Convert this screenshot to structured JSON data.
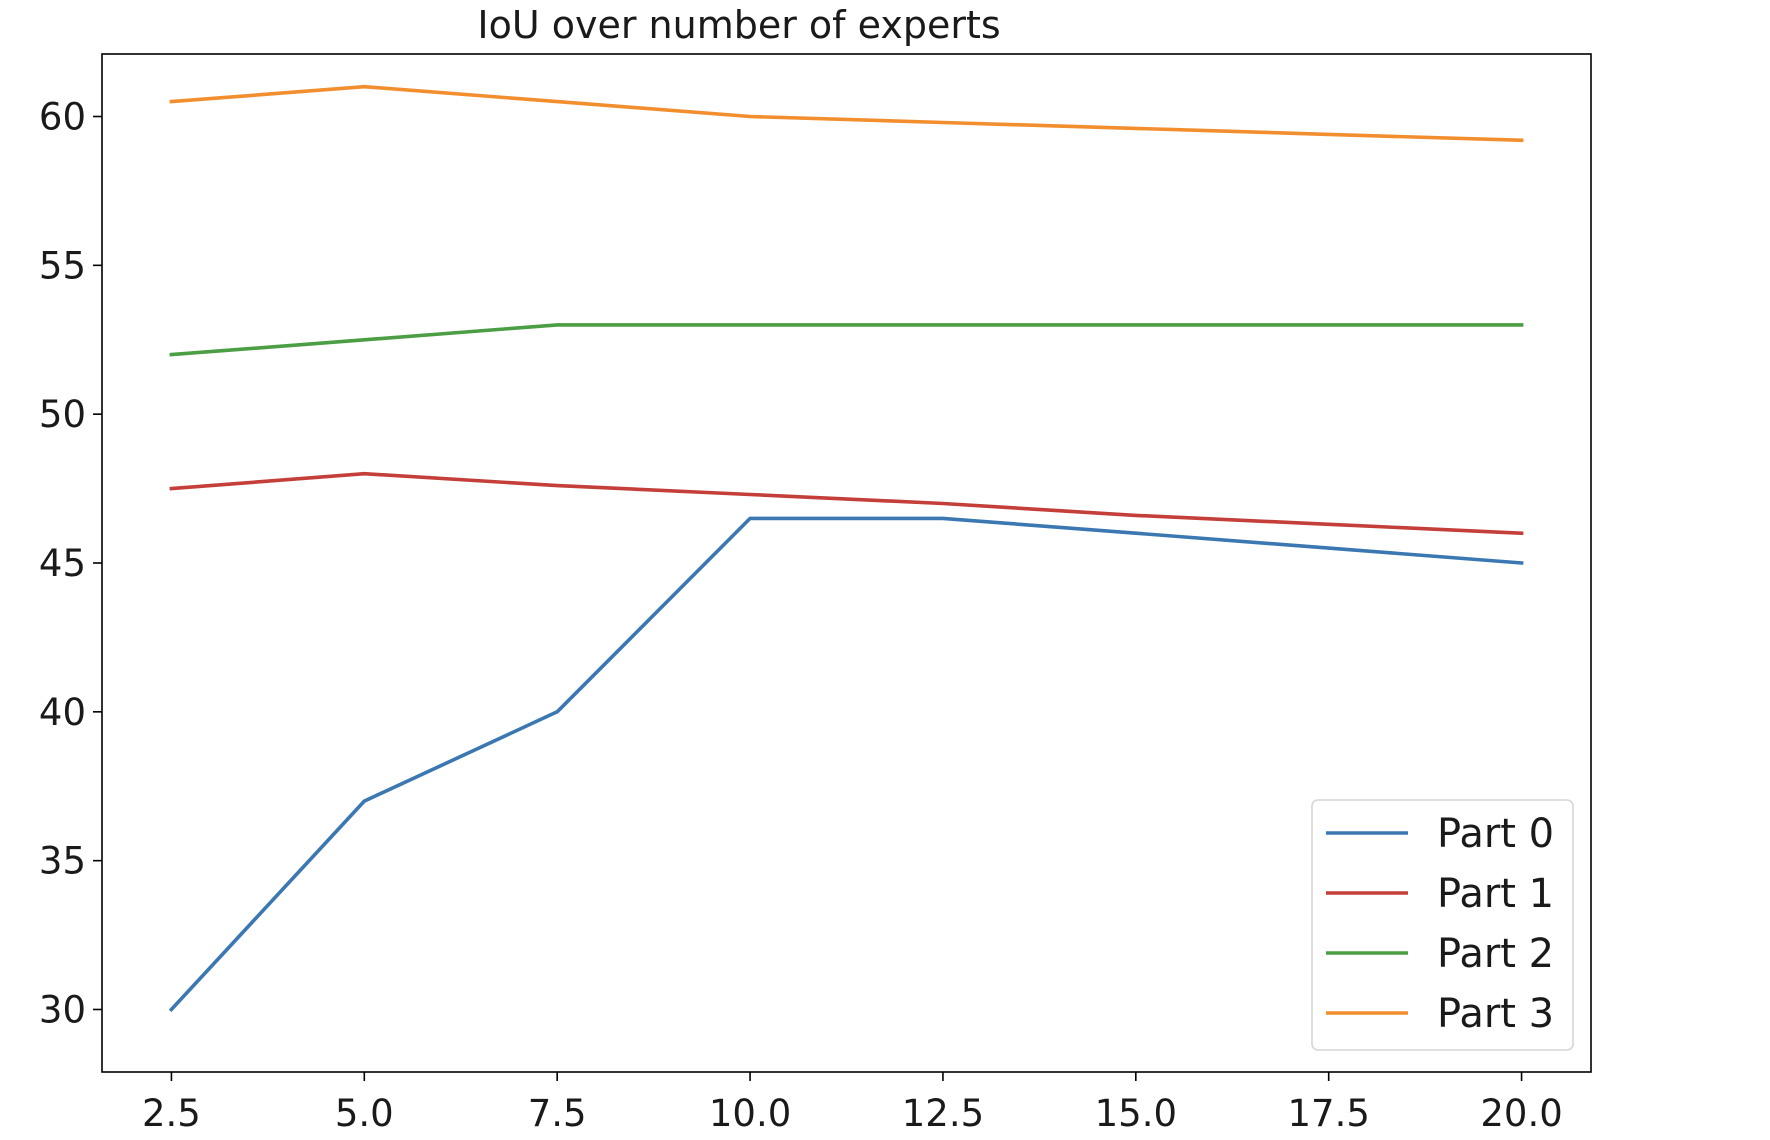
{
  "chart_data": {
    "type": "line",
    "title": "IoU over number of experts",
    "xlabel": "",
    "ylabel": "",
    "x": [
      2.5,
      5.0,
      7.5,
      10.0,
      12.5,
      15.0,
      17.5,
      20.0
    ],
    "xlim": [
      1.6,
      20.9
    ],
    "ylim": [
      27.9,
      62.1
    ],
    "xticks": [
      "2.5",
      "5.0",
      "7.5",
      "10.0",
      "12.5",
      "15.0",
      "17.5",
      "20.0"
    ],
    "yticks": [
      "30",
      "35",
      "40",
      "45",
      "50",
      "55",
      "60"
    ],
    "grid": false,
    "legend_position": "lower-right",
    "series": [
      {
        "name": "Part 0",
        "color": "#3b78b2",
        "values": [
          30.0,
          37.0,
          40.0,
          46.5,
          46.5,
          46.0,
          45.5,
          45.0
        ]
      },
      {
        "name": "Part 1",
        "color": "#c43f3a",
        "values": [
          47.5,
          48.0,
          47.6,
          47.3,
          47.0,
          46.6,
          46.3,
          46.0
        ]
      },
      {
        "name": "Part 2",
        "color": "#4b9e44",
        "values": [
          52.0,
          52.5,
          53.0,
          53.0,
          53.0,
          53.0,
          53.0,
          53.0
        ]
      },
      {
        "name": "Part 3",
        "color": "#f28e2e",
        "values": [
          60.5,
          61.0,
          60.5,
          60.0,
          59.8,
          59.6,
          59.4,
          59.2
        ]
      }
    ]
  }
}
